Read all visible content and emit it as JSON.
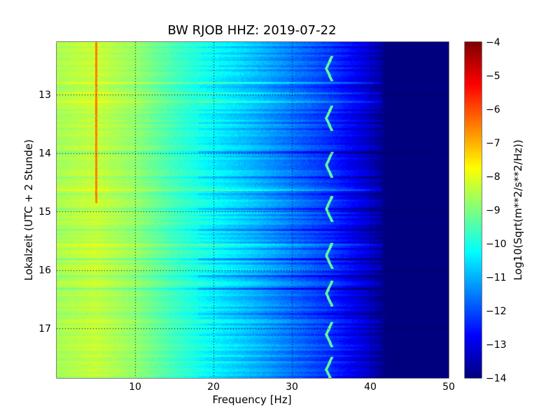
{
  "chart_data": {
    "type": "heatmap",
    "title": "BW RJOB HHZ: 2019-07-22",
    "xlabel": "Frequency [Hz]",
    "ylabel": "Lokalzeit (UTC + 2 Stunde)",
    "xlim": [
      0,
      50
    ],
    "ylim_hours": [
      17.85,
      12.1
    ],
    "x_ticks": [
      "10",
      "20",
      "30",
      "40",
      "50"
    ],
    "x_tick_values": [
      10,
      20,
      30,
      40,
      50
    ],
    "y_ticks": [
      "13",
      "14",
      "15",
      "16",
      "17"
    ],
    "y_tick_values": [
      13,
      14,
      15,
      16,
      17
    ],
    "grid": true,
    "colormap": "jet",
    "colorbar": {
      "label": "Log10(Sqrt(m**2/s**2/Hz))",
      "range": [
        -14,
        -4
      ],
      "ticks": [
        "−4",
        "−5",
        "−6",
        "−7",
        "−8",
        "−9",
        "−10",
        "−11",
        "−12",
        "−13",
        "−14"
      ],
      "tick_values": [
        -4,
        -5,
        -6,
        -7,
        -8,
        -9,
        -10,
        -11,
        -12,
        -13,
        -14
      ]
    },
    "amplitude_profile": {
      "frequency_hz": [
        0,
        5,
        10,
        15,
        20,
        25,
        30,
        35,
        40,
        42,
        50
      ],
      "log10_amplitude": [
        -8.6,
        -8.3,
        -8.8,
        -9.6,
        -10.3,
        -10.9,
        -11.6,
        -12.3,
        -13.3,
        -14,
        -14
      ]
    },
    "features": {
      "narrowband_line": {
        "frequency_hz": 5,
        "from_hour": 12.1,
        "to_hour": 14.85,
        "log10_amplitude": -6.5
      },
      "wandering_signal": {
        "frequency_hz": 34,
        "times_hours": [
          12.55,
          13.4,
          14.2,
          14.95,
          15.75,
          16.4,
          17.1,
          17.7
        ]
      }
    },
    "colors": {
      "background": "#ffffff",
      "axis": "#000000",
      "grid": "#000000"
    }
  }
}
